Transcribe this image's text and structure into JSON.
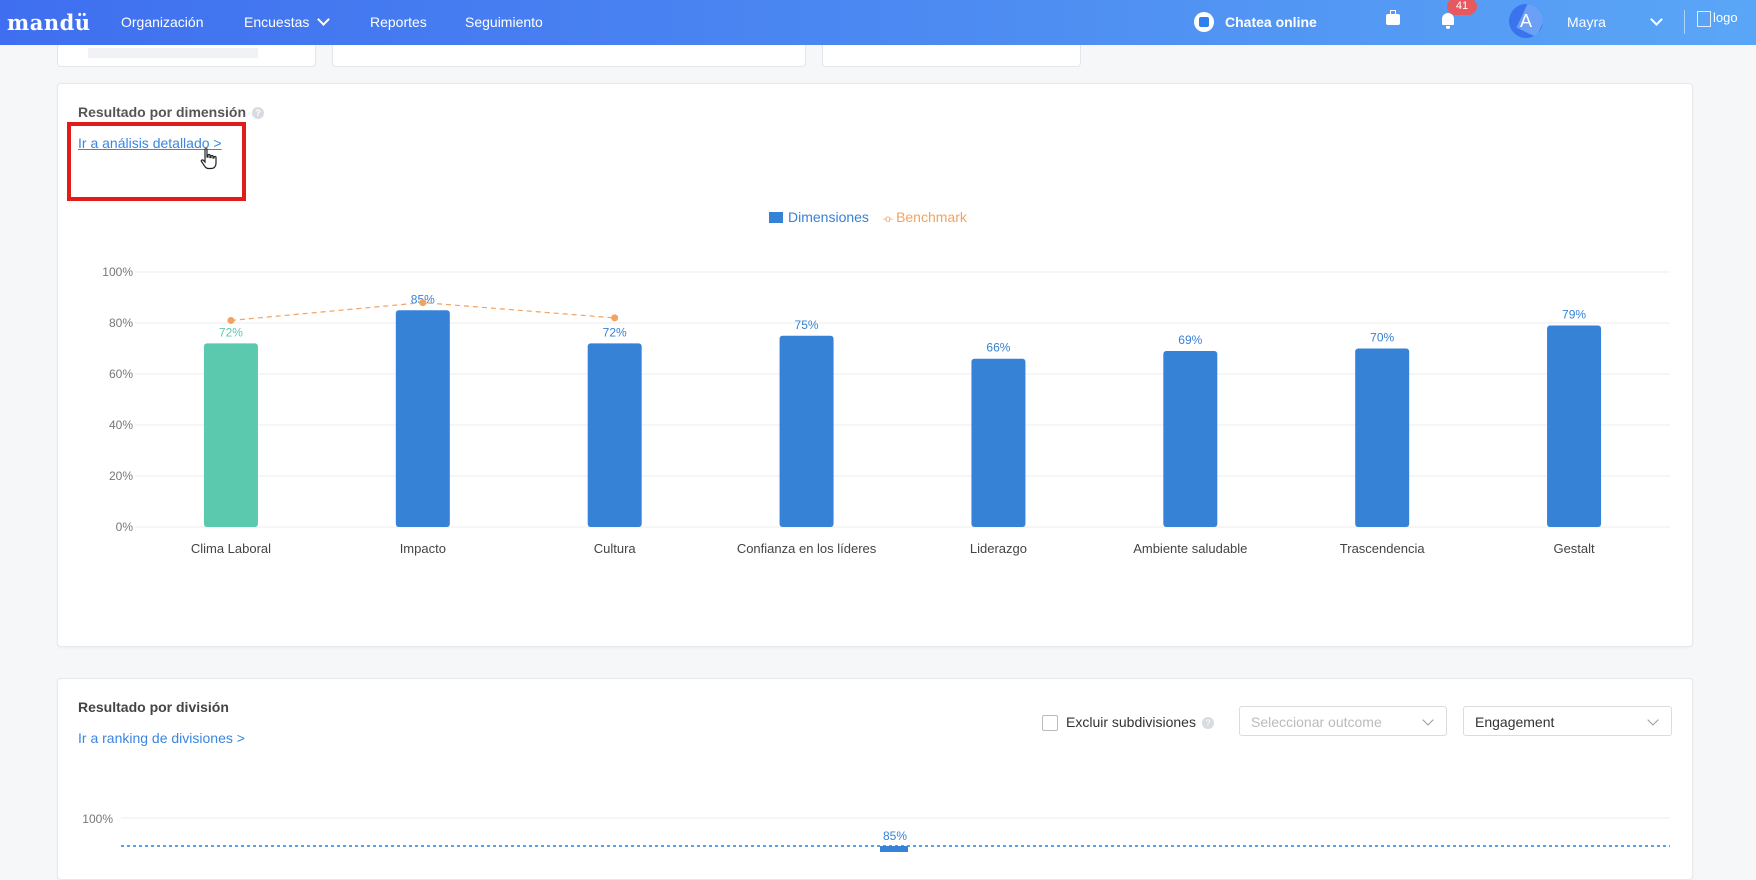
{
  "header": {
    "brand": "mandü",
    "nav": [
      "Organización",
      "Encuestas",
      "Reportes",
      "Seguimiento"
    ],
    "chat_label": "Chatea online",
    "notification_count": "41",
    "avatar_initial": "A",
    "user_name": "Mayra",
    "logo_alt": "logo"
  },
  "dimension_card": {
    "title": "Resultado por dimensión",
    "link": "Ir a análisis detallado >"
  },
  "division_card": {
    "title": "Resultado por división",
    "link": "Ir a ranking de divisiones >",
    "exclude_label": "Excluir subdivisiones",
    "outcome_placeholder": "Seleccionar outcome",
    "metric_select": "Engagement",
    "chart_top_tick": "100%",
    "chart_peak_label": "85%"
  },
  "colors": {
    "primary_bar": "#3682d6",
    "highlight_bar": "#5bc9ad",
    "benchmark": "#f2a35e",
    "link": "#3a86e0",
    "annotation": "#e21b1b"
  },
  "chart_data": {
    "type": "bar",
    "categories": [
      "Clima Laboral",
      "Impacto",
      "Cultura",
      "Confianza en los líderes",
      "Liderazgo",
      "Ambiente saludable",
      "Trascendencia",
      "Gestalt"
    ],
    "series": [
      {
        "name": "Dimensiones",
        "values": [
          72,
          85,
          72,
          75,
          66,
          69,
          70,
          79
        ],
        "labels": [
          "72%",
          "85%",
          "72%",
          "75%",
          "66%",
          "69%",
          "70%",
          "79%"
        ]
      },
      {
        "name": "Benchmark",
        "type": "line",
        "values": [
          81,
          88,
          82,
          null,
          null,
          null,
          null,
          null
        ]
      }
    ],
    "y_ticks": [
      "0%",
      "20%",
      "40%",
      "60%",
      "80%",
      "100%"
    ],
    "ylim": [
      0,
      100
    ],
    "highlighted_category": "Clima Laboral",
    "legend_position": "top-center",
    "grid": true
  }
}
